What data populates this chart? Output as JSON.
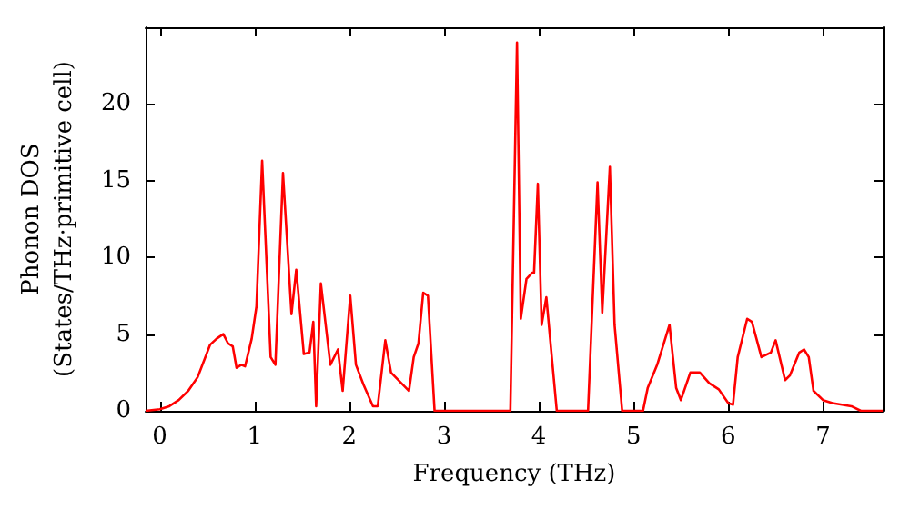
{
  "chart_data": {
    "type": "line",
    "xlabel": "Frequency (THz)",
    "ylabel": "Phonon DOS\n(States/THz·primitive cell)",
    "xlim": [
      -0.15,
      7.63
    ],
    "ylim": [
      0,
      25
    ],
    "xticks": [
      0,
      1,
      2,
      3,
      4,
      5,
      6,
      7
    ],
    "yticks": [
      0,
      5,
      10,
      15,
      20
    ],
    "marker": "none",
    "line_style": "solid",
    "series": [
      {
        "color": "#ff0000",
        "x": [
          -0.15,
          0,
          0.1,
          0.2,
          0.3,
          0.4,
          0.53,
          0.6,
          0.67,
          0.72,
          0.77,
          0.81,
          0.86,
          0.9,
          0.97,
          1.02,
          1.08,
          1.17,
          1.22,
          1.3,
          1.39,
          1.44,
          1.52,
          1.58,
          1.62,
          1.65,
          1.7,
          1.8,
          1.88,
          1.93,
          2.01,
          2.07,
          2.15,
          2.25,
          2.3,
          2.38,
          2.44,
          2.55,
          2.63,
          2.68,
          2.73,
          2.78,
          2.83,
          2.9,
          3.7,
          3.77,
          3.81,
          3.87,
          3.93,
          3.95,
          3.99,
          4.03,
          4.08,
          4.13,
          4.19,
          4.52,
          4.62,
          4.67,
          4.75,
          4.8,
          4.88,
          5.1,
          5.15,
          5.25,
          5.38,
          5.45,
          5.5,
          5.6,
          5.7,
          5.8,
          5.9,
          6.0,
          6.05,
          6.1,
          6.2,
          6.25,
          6.35,
          6.45,
          6.5,
          6.6,
          6.65,
          6.75,
          6.8,
          6.85,
          6.9,
          7.0,
          7.1,
          7.3,
          7.4,
          7.63
        ],
        "values": [
          0,
          0.1,
          0.3,
          0.7,
          1.3,
          2.2,
          4.3,
          4.7,
          5,
          4.4,
          4.2,
          2.8,
          3,
          2.9,
          4.7,
          6.8,
          16.3,
          3.5,
          3,
          15.5,
          6.3,
          9.2,
          3.7,
          3.8,
          5.8,
          0.3,
          8.3,
          3,
          4,
          1.3,
          7.5,
          3,
          1.7,
          0.3,
          0.3,
          4.6,
          2.5,
          1.8,
          1.3,
          3.5,
          4.4,
          7.7,
          7.5,
          0,
          0,
          24,
          6,
          8.6,
          9,
          9,
          14.8,
          5.6,
          7.4,
          4,
          0,
          0,
          14.9,
          6.4,
          15.9,
          5.6,
          0,
          0,
          1.5,
          3,
          5.6,
          1.5,
          0.7,
          2.5,
          2.5,
          1.8,
          1.4,
          0.5,
          0.4,
          3.5,
          6,
          5.8,
          3.5,
          3.8,
          4.6,
          2,
          2.3,
          3.8,
          4,
          3.5,
          1.3,
          0.7,
          0.5,
          0.3,
          0,
          0
        ]
      }
    ]
  }
}
